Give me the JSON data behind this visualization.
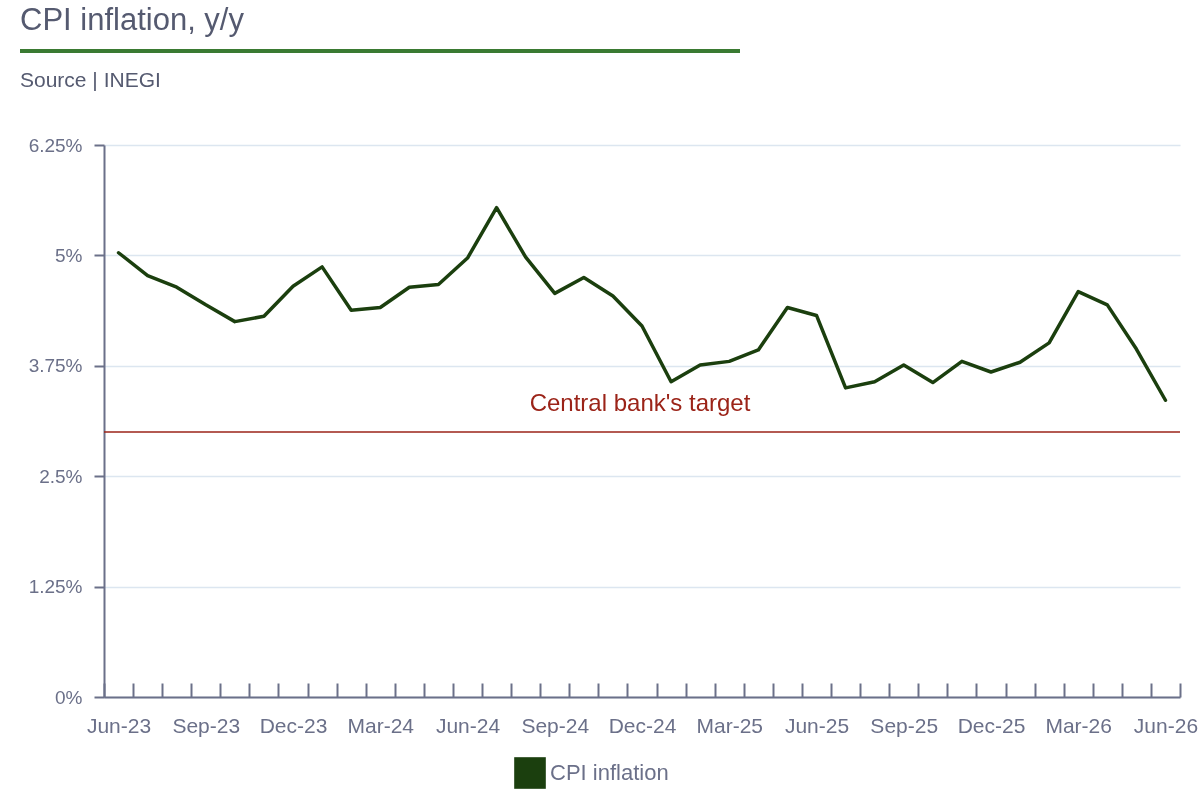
{
  "chart_data": {
    "type": "line",
    "title": "CPI inflation, y/y",
    "subtitle": "Source | INEGI",
    "categories": [
      "Jun-23",
      null,
      null,
      "Sep-23",
      null,
      null,
      "Dec-23",
      null,
      null,
      "Mar-24",
      null,
      null,
      "Jun-24",
      null,
      null,
      "Sep-24",
      null,
      null,
      "Dec-24",
      null,
      null,
      "Mar-25",
      null,
      null,
      "Jun-25",
      null,
      null,
      "Sep-25",
      null,
      null,
      "Dec-25",
      null,
      null,
      "Mar-26",
      null,
      null,
      "Jun-26"
    ],
    "series": [
      {
        "name": "CPI inflation",
        "color": "#1b3f0e",
        "values": [
          5.03,
          4.77,
          4.64,
          4.44,
          4.25,
          4.31,
          4.65,
          4.87,
          4.38,
          4.41,
          4.64,
          4.67,
          4.97,
          5.54,
          4.98,
          4.57,
          4.75,
          4.54,
          4.2,
          3.57,
          3.76,
          3.8,
          3.93,
          4.41,
          4.32,
          3.5,
          3.57,
          3.76,
          3.56,
          3.8,
          3.68,
          3.79,
          4.01,
          4.59,
          4.44,
          3.94,
          3.36
        ]
      }
    ],
    "ylim": [
      0,
      6.25
    ],
    "yticks": [
      {
        "value": 0,
        "label": "0%"
      },
      {
        "value": 1.25,
        "label": "1.25%"
      },
      {
        "value": 2.5,
        "label": "2.5%"
      },
      {
        "value": 3.75,
        "label": "3.75%"
      },
      {
        "value": 5,
        "label": "5%"
      },
      {
        "value": 6.25,
        "label": "6.25%"
      }
    ],
    "ref_lines": [
      {
        "axis": "y",
        "value": 3,
        "label": "Central bank's target",
        "color": "#9b2318"
      }
    ],
    "grid": "y",
    "legend": "bottom",
    "line_style": "solid"
  }
}
